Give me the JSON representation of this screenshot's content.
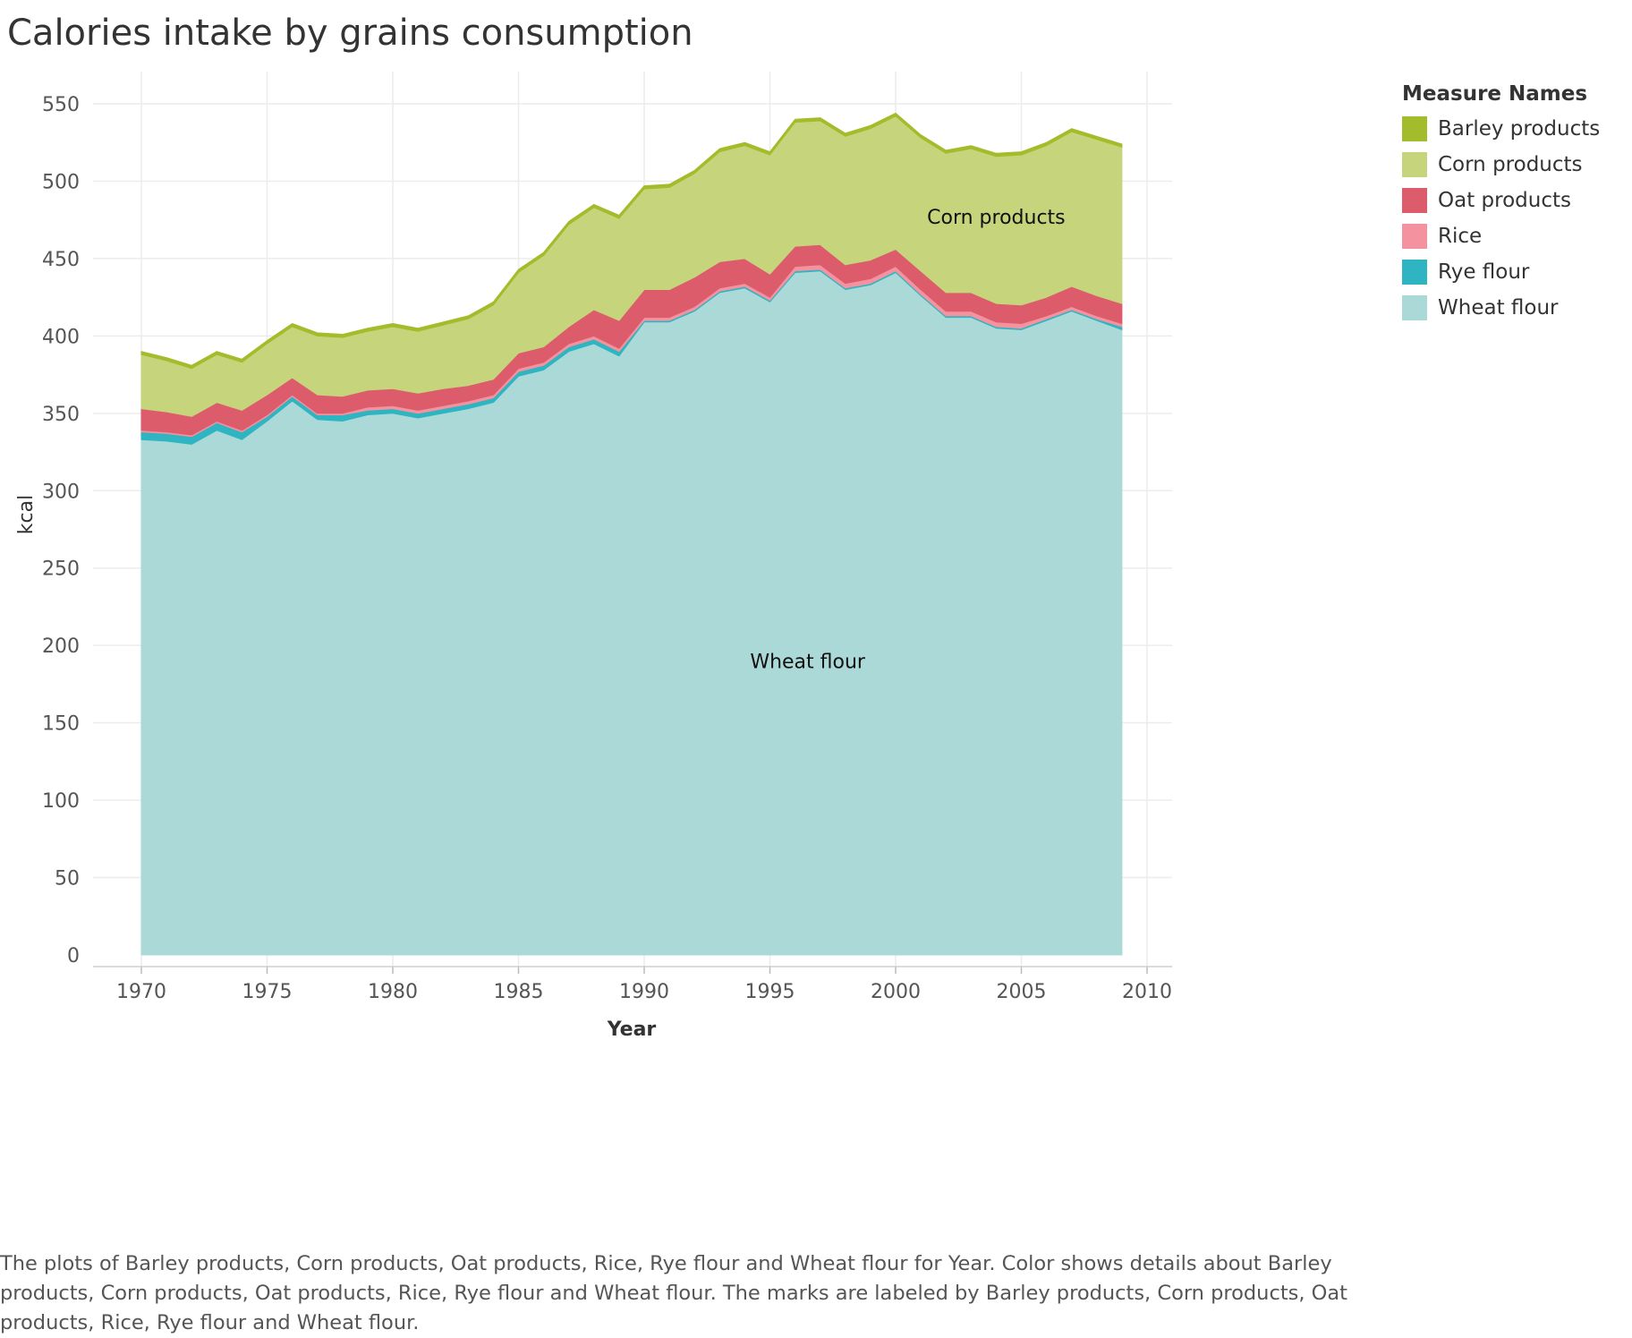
{
  "title": "Calories intake by grains consumption",
  "caption": "The plots of Barley products, Corn products, Oat products, Rice, Rye flour and Wheat flour for Year.  Color shows details about Barley products, Corn products, Oat products, Rice, Rye flour and Wheat flour.  The marks are labeled by Barley products, Corn products, Oat products, Rice, Rye flour and Wheat flour.",
  "chart_data": {
    "type": "area",
    "stacked": true,
    "title": "Calories intake by grains consumption",
    "xlabel": "Year",
    "ylabel": "kcal",
    "xlim": [
      1968,
      2010
    ],
    "ylim": [
      0,
      570
    ],
    "x_ticks": [
      1970,
      1975,
      1980,
      1985,
      1990,
      1995,
      2000,
      2005,
      2010
    ],
    "y_ticks": [
      0,
      50,
      100,
      150,
      200,
      250,
      300,
      350,
      400,
      450,
      500,
      550
    ],
    "grid": true,
    "legend_title": "Measure Names",
    "legend_position": "right",
    "x": [
      1970,
      1971,
      1972,
      1973,
      1974,
      1975,
      1976,
      1977,
      1978,
      1979,
      1980,
      1981,
      1982,
      1983,
      1984,
      1985,
      1986,
      1987,
      1988,
      1989,
      1990,
      1991,
      1992,
      1993,
      1994,
      1995,
      1996,
      1997,
      1998,
      1999,
      2000,
      2001,
      2002,
      2003,
      2004,
      2005,
      2006,
      2007,
      2008,
      2009
    ],
    "series": [
      {
        "name": "Wheat flour",
        "color": "#abd9d8",
        "values": [
          333,
          332,
          330,
          339,
          333,
          345,
          358,
          346,
          345,
          349,
          350,
          347,
          350,
          353,
          357,
          374,
          378,
          390,
          395,
          387,
          409,
          409,
          416,
          428,
          431,
          422,
          441,
          442,
          430,
          433,
          441,
          426,
          412,
          412,
          405,
          404,
          410,
          416,
          410,
          404
        ]
      },
      {
        "name": "Rye flour",
        "color": "#2fb5c2",
        "values": [
          5,
          5,
          5,
          5,
          5,
          3,
          3,
          3,
          4,
          3,
          3,
          3,
          3,
          3,
          3,
          3,
          3,
          3,
          3,
          3,
          1,
          1,
          1,
          1,
          1,
          1,
          1,
          1,
          1,
          1,
          1,
          1,
          1,
          1,
          1,
          1,
          1,
          1,
          1,
          2
        ]
      },
      {
        "name": "Rice",
        "color": "#f4929f",
        "values": [
          1,
          1,
          1,
          1,
          1,
          1,
          1,
          1,
          1,
          2,
          2,
          2,
          2,
          2,
          2,
          2,
          2,
          2,
          2,
          2,
          2,
          2,
          2,
          2,
          2,
          2,
          3,
          3,
          3,
          3,
          3,
          3,
          3,
          3,
          3,
          3,
          2,
          2,
          2,
          2
        ]
      },
      {
        "name": "Oat products",
        "color": "#dc5c6c",
        "values": [
          14,
          13,
          12,
          12,
          13,
          13,
          11,
          12,
          11,
          11,
          11,
          11,
          11,
          10,
          10,
          10,
          10,
          11,
          17,
          18,
          18,
          18,
          19,
          17,
          16,
          15,
          13,
          13,
          12,
          12,
          11,
          12,
          12,
          12,
          12,
          12,
          12,
          13,
          13,
          13
        ]
      },
      {
        "name": "Corn products",
        "color": "#c6d57c",
        "values": [
          35,
          33,
          31,
          31,
          31,
          33,
          33,
          38,
          38,
          38,
          40,
          40,
          41,
          43,
          48,
          52,
          59,
          66,
          66,
          66,
          65,
          66,
          67,
          71,
          73,
          77,
          80,
          80,
          83,
          85,
          86,
          86,
          90,
          93,
          95,
          97,
          98,
          100,
          101,
          101
        ]
      },
      {
        "name": "Barley products",
        "color": "#a3bc2b",
        "values": [
          2,
          2,
          2,
          2,
          2,
          2,
          2,
          2,
          2,
          2,
          2,
          2,
          2,
          2,
          2,
          2,
          2,
          2,
          2,
          2,
          2,
          2,
          2,
          2,
          2,
          2,
          2,
          2,
          2,
          2,
          2,
          2,
          2,
          2,
          2,
          2,
          2,
          2,
          2,
          2
        ]
      }
    ],
    "annotations": [
      {
        "text": "Corn products",
        "x": 2004,
        "y": 477
      },
      {
        "text": "Wheat flour",
        "x": 1996.5,
        "y": 190
      }
    ]
  }
}
